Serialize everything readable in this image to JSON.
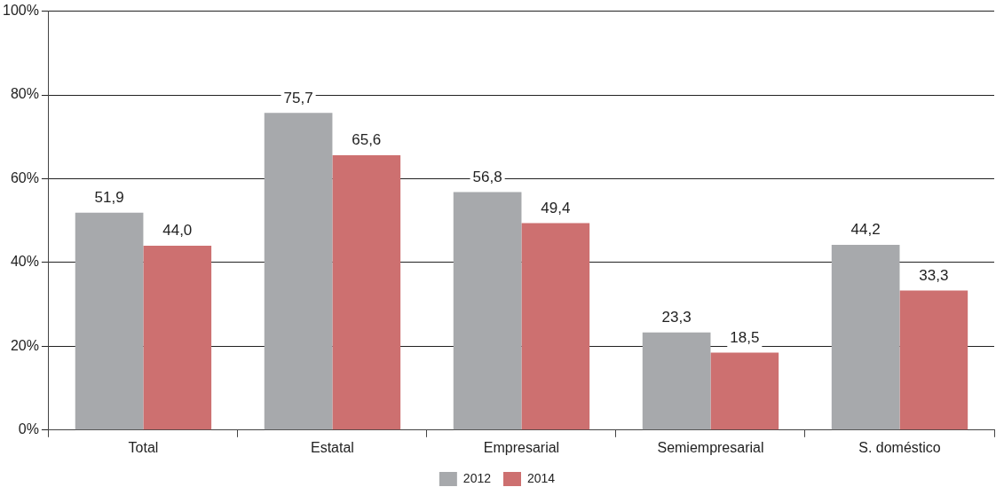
{
  "chart_data": {
    "type": "bar",
    "categories": [
      "Total",
      "Estatal",
      "Empresarial",
      "Semiempresarial",
      "S. doméstico"
    ],
    "series": [
      {
        "name": "2012",
        "color": "#a7a9ac",
        "values": [
          51.9,
          75.7,
          56.8,
          23.3,
          44.2
        ],
        "value_labels": [
          "51,9",
          "75,7",
          "56,8",
          "23,3",
          "44,2"
        ]
      },
      {
        "name": "2014",
        "color": "#cd7070",
        "values": [
          44.0,
          65.6,
          49.4,
          18.5,
          33.3
        ],
        "value_labels": [
          "44,0",
          "65,6",
          "49,4",
          "18,5",
          "33,3"
        ]
      }
    ],
    "ylim": [
      0,
      100
    ],
    "yticks": [
      {
        "value": 0,
        "label": "0%"
      },
      {
        "value": 20,
        "label": "20%"
      },
      {
        "value": 40,
        "label": "40%"
      },
      {
        "value": 60,
        "label": "60%"
      },
      {
        "value": 80,
        "label": "80%"
      },
      {
        "value": 100,
        "label": "100%"
      }
    ],
    "grid": "y",
    "legend": "bottom"
  }
}
